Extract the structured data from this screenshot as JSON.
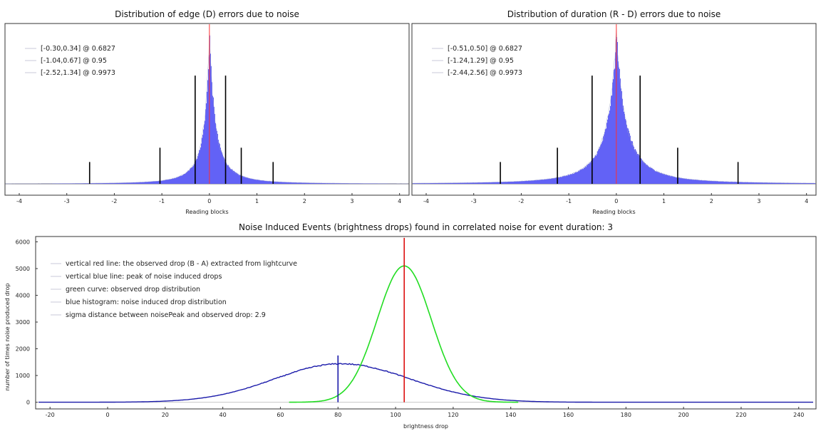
{
  "chart_data": [
    {
      "type": "histogram",
      "title": "Distribution of edge (D) errors due to noise",
      "xlabel": "Reading blocks",
      "ylabel": "",
      "xlim": [
        -4.3,
        4.2
      ],
      "xticks": [
        -4,
        -3,
        -2,
        -1,
        0,
        1,
        2,
        3,
        4
      ],
      "center": 0.0,
      "spread_left": 0.27,
      "spread_right": 0.3,
      "bar_color": "#5a5af5",
      "center_line_color": "#ff3030",
      "legend": {
        "placement": "top-left",
        "entries": [
          "[-0.30,0.34] @ 0.6827",
          "[-1.04,0.67] @ 0.95",
          "[-2.52,1.34] @ 0.9973"
        ]
      },
      "markers": [
        {
          "x": -0.3,
          "height_fraction": 0.72
        },
        {
          "x": 0.34,
          "height_fraction": 0.72
        },
        {
          "x": -1.04,
          "height_fraction": 0.24
        },
        {
          "x": 0.67,
          "height_fraction": 0.24
        },
        {
          "x": -2.52,
          "height_fraction": 0.145
        },
        {
          "x": 1.34,
          "height_fraction": 0.145
        }
      ]
    },
    {
      "type": "histogram",
      "title": "Distribution of duration (R - D) errors due to noise",
      "xlabel": "Reading blocks",
      "ylabel": "",
      "xlim": [
        -4.3,
        4.2
      ],
      "xticks": [
        -4,
        -3,
        -2,
        -1,
        0,
        1,
        2,
        3,
        4
      ],
      "center": 0.0,
      "spread_left": 0.48,
      "spread_right": 0.5,
      "bar_color": "#5a5af5",
      "center_line_color": "#ff3030",
      "legend": {
        "placement": "top-left",
        "entries": [
          "[-0.51,0.50] @ 0.6827",
          "[-1.24,1.29] @ 0.95",
          "[-2.44,2.56] @ 0.9973"
        ]
      },
      "markers": [
        {
          "x": -0.51,
          "height_fraction": 0.72
        },
        {
          "x": 0.5,
          "height_fraction": 0.72
        },
        {
          "x": -1.24,
          "height_fraction": 0.24
        },
        {
          "x": 1.29,
          "height_fraction": 0.24
        },
        {
          "x": -2.44,
          "height_fraction": 0.145
        },
        {
          "x": 2.56,
          "height_fraction": 0.145
        }
      ]
    },
    {
      "type": "line",
      "title": "Noise Induced Events (brightness drops) found in correlated noise for event duration: 3",
      "xlabel": "brightness drop",
      "ylabel": "number of times noise produced drop",
      "xlim": [
        -25,
        246
      ],
      "ylim": [
        -250,
        6200
      ],
      "xticks": [
        -20,
        0,
        20,
        40,
        60,
        80,
        100,
        120,
        140,
        160,
        180,
        200,
        220,
        240
      ],
      "yticks": [
        0,
        1000,
        2000,
        3000,
        4000,
        5000,
        6000
      ],
      "legend": {
        "placement": "top-left",
        "entries": [
          "vertical red line: the observed drop (B - A) extracted from lightcurve",
          "vertical blue line: peak of noise induced drops",
          "green curve: observed drop distribution",
          "blue histogram: noise induced drop distribution",
          "sigma distance between noisePeak and observed drop: 2.9"
        ]
      },
      "series": [
        {
          "kind": "green-curve",
          "color": "#22dd22",
          "mean": 103,
          "sigma": 9.4,
          "peak": 5100,
          "x_range": [
            63,
            143
          ]
        },
        {
          "kind": "blue-histogram",
          "color": "#1a1aaa",
          "mean": 81,
          "sigma_left": 23,
          "sigma_right": 24,
          "peak": 1440,
          "x_range": [
            -24,
            245
          ]
        }
      ],
      "vlines": [
        {
          "x": 103,
          "y_top": 6150,
          "color": "#dd1111"
        },
        {
          "x": 80,
          "y_top": 1750,
          "color": "#1a1aaa"
        }
      ]
    }
  ]
}
